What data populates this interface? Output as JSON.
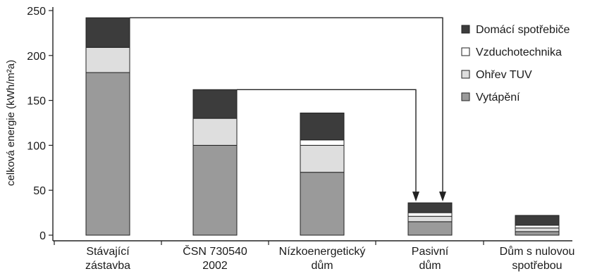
{
  "chart_data": {
    "type": "bar",
    "stacked": true,
    "categories": [
      [
        "Stávající",
        "zástavba"
      ],
      [
        "ČSN 730540",
        "2002"
      ],
      [
        "Nízkoenergetický",
        "dům"
      ],
      [
        "Pasivní",
        "dům"
      ],
      [
        "Dům s nulovou",
        "spotřebou"
      ]
    ],
    "series": [
      {
        "name": "Vytápění",
        "color": "#9a9a9a",
        "values": [
          181,
          100,
          70,
          15,
          4
        ]
      },
      {
        "name": "Ohřev TUV",
        "color": "#dedede",
        "values": [
          28,
          30,
          30,
          6,
          4
        ]
      },
      {
        "name": "Vzduchotechnika",
        "color": "#ffffff",
        "values": [
          0,
          0,
          6,
          4,
          3
        ]
      },
      {
        "name": "Domácí spotřebiče",
        "color": "#3c3c3c",
        "values": [
          33,
          32,
          30,
          11,
          11
        ]
      }
    ],
    "legend_order": [
      "Domácí spotřebiče",
      "Vzduchotechnika",
      "Ohřev TUV",
      "Vytápění"
    ],
    "legend_position": "top-right",
    "ylabel": "celková energie (kWh/m²a)",
    "xlabel": "",
    "title": "",
    "ylim": [
      0,
      250
    ],
    "yticks": [
      0,
      50,
      100,
      150,
      200,
      250
    ],
    "grid": false,
    "arrows": [
      {
        "from": 0,
        "to": 3
      },
      {
        "from": 1,
        "to": 3
      }
    ]
  }
}
